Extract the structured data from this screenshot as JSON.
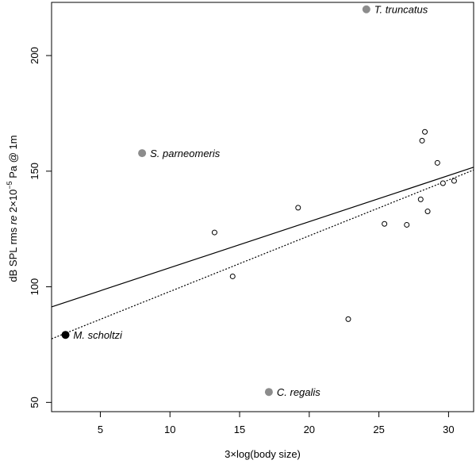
{
  "chart_data": {
    "type": "scatter",
    "title": "",
    "xlabel": "3×log(body size)",
    "ylabel_parts": {
      "prefix": "dB SPL rms ",
      "re": "re",
      "middle": " 2×10",
      "exponent": "−5",
      "suffix": " Pa @ 1m"
    },
    "xlim": [
      1.5,
      31.8
    ],
    "ylim": [
      46,
      223
    ],
    "xticks": [
      5,
      10,
      15,
      20,
      25,
      30
    ],
    "yticks": [
      50,
      100,
      150,
      200
    ],
    "open_points": [
      {
        "x": 13.2,
        "y": 123.5
      },
      {
        "x": 14.5,
        "y": 104.5
      },
      {
        "x": 19.2,
        "y": 134.2
      },
      {
        "x": 22.8,
        "y": 86
      },
      {
        "x": 25.4,
        "y": 127.2
      },
      {
        "x": 27.0,
        "y": 126.8
      },
      {
        "x": 28.0,
        "y": 137.8
      },
      {
        "x": 28.1,
        "y": 163.2
      },
      {
        "x": 28.3,
        "y": 167
      },
      {
        "x": 28.5,
        "y": 132.6
      },
      {
        "x": 29.2,
        "y": 153.6
      },
      {
        "x": 29.6,
        "y": 144.8
      },
      {
        "x": 30.4,
        "y": 145.8
      }
    ],
    "labeled_points": [
      {
        "label": "T. truncatus",
        "x": 24.1,
        "y": 220,
        "color": "#8c8c8c"
      },
      {
        "label": "S. parneomeris",
        "x": 8.0,
        "y": 157.8,
        "color": "#8c8c8c"
      },
      {
        "label": "C. regalis",
        "x": 17.1,
        "y": 54.5,
        "color": "#8c8c8c"
      },
      {
        "label": "M. scholtzi",
        "x": 2.5,
        "y": 79.2,
        "color": "#000000"
      }
    ],
    "fit_lines": [
      {
        "name": "solid",
        "style": "solid",
        "x": [
          1.5,
          31.8
        ],
        "y": [
          91.3,
          151.7
        ]
      },
      {
        "name": "dotted",
        "style": "dotted",
        "x": [
          1.5,
          31.8
        ],
        "y": [
          77.5,
          150.5
        ]
      }
    ]
  }
}
